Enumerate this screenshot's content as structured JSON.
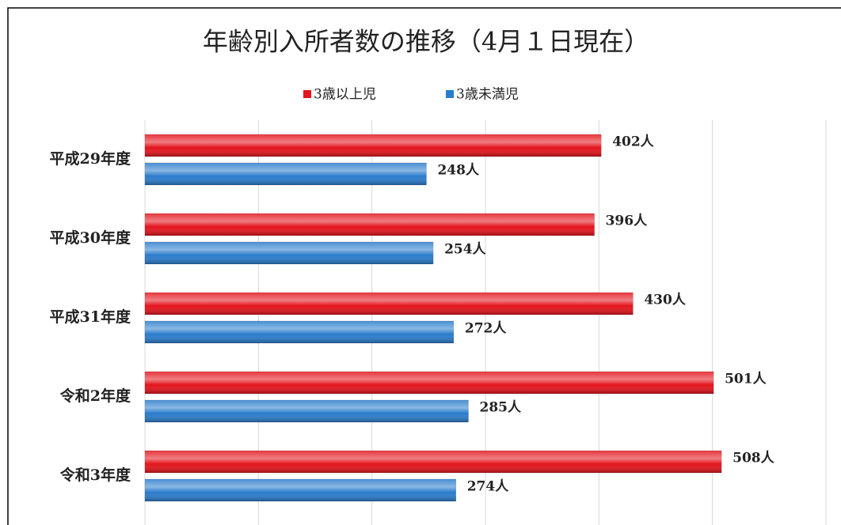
{
  "chart_data": {
    "type": "hbar",
    "title": "年齢別入所者数の推移（4月１日現在）",
    "categories": [
      "平成29年度",
      "平成30年度",
      "平成31年度",
      "令和2年度",
      "令和3年度"
    ],
    "series": [
      {
        "name": "3歳以上児",
        "color": "#e3141c",
        "values": [
          402,
          396,
          430,
          501,
          508
        ],
        "value_labels": [
          "402人",
          "396人",
          "430人",
          "501人",
          "508人"
        ]
      },
      {
        "name": "3歳未満児",
        "color": "#2a7ccc",
        "values": [
          248,
          254,
          272,
          285,
          274
        ],
        "value_labels": [
          "248人",
          "254人",
          "272人",
          "285人",
          "274人"
        ]
      }
    ],
    "xlim": [
      0,
      600
    ],
    "xticks": [
      0,
      100,
      200,
      300,
      400,
      500,
      600
    ],
    "grid": true,
    "legend": "top"
  }
}
